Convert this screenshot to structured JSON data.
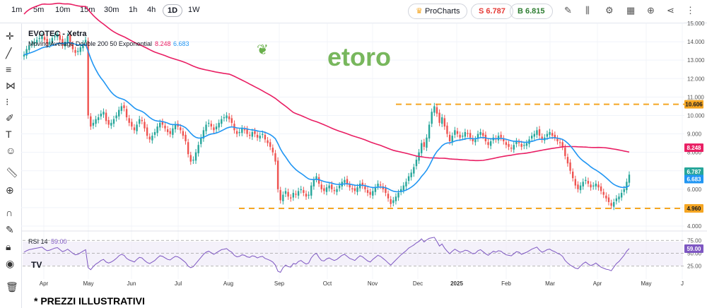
{
  "toolbar": {
    "timeframes": [
      "1m",
      "5m",
      "10m",
      "15m",
      "30m",
      "1h",
      "4h",
      "1D",
      "1W"
    ],
    "active_timeframe": "1D",
    "prochart_label": "ProCharts",
    "sell_label": "S 6.787",
    "buy_label": "B 6.815"
  },
  "chart_title": "EVOTEC - Xetra",
  "indicator": {
    "label": "Moving Average Double 200 50 Exponential",
    "ma200": "8.248",
    "ma50": "6.683"
  },
  "watermark": "etoro",
  "rsi_label": {
    "name": "RSI 14",
    "value": "59.00"
  },
  "footnote": "* PREZZI ILLUSTRATIVI",
  "colors": {
    "ma200": "#e91e63",
    "ma50": "#2196f3",
    "up": "#26a69a",
    "down": "#ef5350",
    "level": "#f5a623",
    "rsi": "#7e57c2",
    "watermark": "#6ab04c"
  },
  "chart_data": {
    "type": "candlestick",
    "ylim": [
      4.0,
      15.0
    ],
    "y_ticks": [
      "4.000",
      "5.000",
      "6.000",
      "7.000",
      "8.000",
      "9.000",
      "10.000",
      "11.000",
      "12.000",
      "13.000",
      "14.000",
      "15.000"
    ],
    "x_ticks": [
      "Apr",
      "May",
      "Jun",
      "Jul",
      "Aug",
      "Sep",
      "Oct",
      "Nov",
      "Dec",
      "2025",
      "Feb",
      "Mar",
      "Apr",
      "May",
      "J"
    ],
    "price_labels": {
      "top_level": "10.606",
      "ma200": "8.248",
      "last": "6.787",
      "ma50": "6.683",
      "bottom_level": "4.960"
    },
    "levels": [
      10.606,
      4.96
    ],
    "close": [
      13.3,
      13.6,
      13.8,
      13.9,
      14.0,
      14.1,
      14.2,
      14.3,
      14.1,
      13.9,
      14.0,
      14.2,
      14.3,
      14.4,
      14.1,
      13.8,
      14.0,
      14.3,
      13.9,
      13.6,
      13.4,
      13.5,
      13.7,
      13.9,
      14.1,
      10.0,
      9.4,
      9.6,
      9.8,
      9.9,
      10.1,
      10.2,
      9.7,
      9.5,
      9.6,
      9.8,
      10.0,
      10.3,
      10.5,
      10.4,
      9.9,
      9.6,
      9.4,
      9.2,
      9.5,
      9.8,
      9.7,
      9.3,
      8.9,
      8.7,
      8.9,
      9.1,
      9.4,
      9.6,
      9.5,
      9.3,
      9.1,
      9.0,
      9.3,
      9.5,
      9.4,
      9.2,
      8.9,
      8.6,
      7.9,
      7.5,
      7.6,
      8.0,
      8.4,
      8.8,
      9.2,
      9.5,
      9.6,
      9.4,
      9.2,
      9.4,
      9.6,
      9.8,
      9.9,
      10.0,
      9.8,
      9.6,
      9.2,
      9.0,
      9.1,
      9.3,
      9.2,
      9.0,
      8.9,
      9.1,
      9.0,
      8.8,
      8.9,
      9.0,
      8.7,
      8.5,
      8.3,
      8.0,
      7.5,
      6.0,
      5.4,
      5.7,
      5.9,
      5.6,
      5.5,
      5.8,
      5.7,
      5.9,
      6.0,
      5.8,
      5.6,
      5.7,
      6.2,
      6.5,
      6.7,
      6.3,
      6.0,
      5.9,
      6.1,
      6.2,
      6.0,
      5.9,
      6.0,
      6.2,
      6.4,
      6.5,
      6.3,
      6.1,
      6.0,
      5.9,
      6.1,
      6.3,
      6.2,
      6.0,
      5.8,
      5.7,
      5.9,
      6.1,
      6.3,
      6.2,
      6.0,
      5.8,
      5.5,
      5.2,
      5.4,
      5.6,
      5.8,
      6.0,
      6.2,
      6.4,
      6.7,
      6.9,
      7.2,
      7.6,
      8.0,
      8.5,
      8.3,
      8.8,
      9.5,
      10.2,
      10.5,
      10.1,
      9.6,
      9.9,
      9.4,
      9.0,
      8.6,
      8.9,
      9.2,
      9.0,
      8.8,
      8.9,
      9.1,
      9.0,
      8.8,
      8.6,
      8.7,
      9.0,
      9.1,
      8.9,
      8.6,
      8.4,
      8.6,
      8.8,
      8.7,
      8.9,
      8.8,
      8.6,
      8.4,
      8.3,
      8.2,
      8.4,
      8.6,
      8.5,
      8.3,
      8.4,
      8.5,
      8.7,
      8.9,
      9.0,
      9.2,
      8.9,
      8.7,
      8.8,
      9.0,
      9.1,
      8.9,
      8.8,
      8.6,
      8.5,
      8.3,
      7.8,
      7.4,
      7.0,
      6.6,
      6.2,
      6.0,
      6.2,
      6.4,
      6.5,
      6.3,
      6.1,
      6.2,
      6.3,
      6.1,
      5.9,
      5.7,
      5.5,
      5.3,
      5.1,
      5.3,
      5.5,
      5.6,
      5.8,
      6.0,
      6.4,
      6.787
    ]
  },
  "rsi_data": {
    "ylim": [
      15,
      85
    ],
    "levels": [
      75,
      50,
      25
    ],
    "tick_labels": [
      "75.00",
      "50.00",
      "25.00"
    ],
    "values": [
      52,
      55,
      57,
      58,
      59,
      60,
      61,
      62,
      58,
      55,
      56,
      58,
      60,
      61,
      57,
      53,
      55,
      58,
      54,
      50,
      47,
      48,
      51,
      54,
      57,
      22,
      18,
      24,
      29,
      32,
      36,
      38,
      33,
      31,
      33,
      36,
      40,
      45,
      48,
      46,
      40,
      37,
      35,
      33,
      38,
      42,
      41,
      36,
      32,
      30,
      33,
      36,
      41,
      45,
      44,
      41,
      38,
      37,
      41,
      44,
      43,
      40,
      36,
      32,
      25,
      22,
      24,
      30,
      36,
      42,
      48,
      52,
      54,
      51,
      48,
      51,
      54,
      57,
      58,
      59,
      55,
      52,
      46,
      43,
      44,
      47,
      46,
      43,
      42,
      45,
      44,
      41,
      43,
      44,
      40,
      38,
      36,
      33,
      27,
      15,
      13,
      22,
      27,
      24,
      23,
      30,
      29,
      34,
      36,
      32,
      29,
      31,
      41,
      47,
      50,
      42,
      36,
      35,
      39,
      41,
      38,
      36,
      38,
      42,
      46,
      48,
      44,
      40,
      38,
      36,
      41,
      45,
      43,
      39,
      35,
      33,
      38,
      42,
      46,
      44,
      40,
      36,
      31,
      27,
      32,
      37,
      42,
      47,
      51,
      55,
      60,
      63,
      66,
      70,
      73,
      78,
      72,
      76,
      79,
      80,
      81,
      73,
      64,
      68,
      60,
      54,
      49,
      54,
      58,
      55,
      52,
      53,
      56,
      55,
      52,
      49,
      50,
      55,
      57,
      53,
      49,
      46,
      50,
      54,
      52,
      55,
      54,
      50,
      47,
      46,
      45,
      49,
      53,
      52,
      48,
      50,
      52,
      55,
      58,
      60,
      62,
      56,
      52,
      54,
      57,
      58,
      55,
      53,
      50,
      48,
      44,
      36,
      31,
      27,
      24,
      21,
      20,
      25,
      30,
      33,
      29,
      26,
      28,
      31,
      27,
      23,
      21,
      19,
      18,
      16,
      23,
      30,
      34,
      40,
      46,
      54,
      59
    ]
  }
}
